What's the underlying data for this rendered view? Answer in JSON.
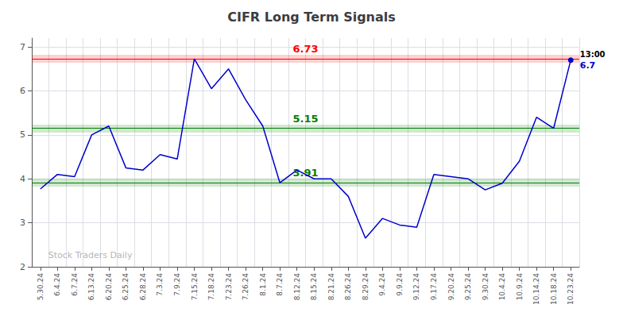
{
  "chart_data": {
    "type": "line",
    "title": "CIFR Long Term Signals",
    "categories": [
      "5.30.24",
      "6.4.24",
      "6.7.24",
      "6.13.24",
      "6.20.24",
      "6.25.24",
      "6.28.24",
      "7.3.24",
      "7.9.24",
      "7.15.24",
      "7.18.24",
      "7.23.24",
      "7.26.24",
      "8.1.24",
      "8.7.24",
      "8.12.24",
      "8.15.24",
      "8.21.24",
      "8.26.24",
      "8.29.24",
      "9.4.24",
      "9.9.24",
      "9.12.24",
      "9.17.24",
      "9.20.24",
      "9.25.24",
      "9.30.24",
      "10.4.24",
      "10.9.24",
      "10.14.24",
      "10.18.24",
      "10.23.24"
    ],
    "values": [
      3.77,
      4.1,
      4.05,
      5.0,
      5.2,
      4.25,
      4.2,
      4.55,
      4.45,
      6.73,
      6.05,
      6.5,
      5.8,
      5.2,
      3.91,
      4.2,
      4.0,
      4.0,
      3.6,
      2.65,
      3.1,
      2.95,
      2.9,
      4.1,
      4.05,
      4.0,
      3.75,
      3.9,
      4.4,
      5.4,
      5.15,
      6.7
    ],
    "value_labels": [
      null,
      null,
      null,
      null,
      null,
      null,
      null,
      null,
      null,
      null,
      null,
      null,
      null,
      null,
      null,
      null,
      null,
      null,
      null,
      null,
      null,
      null,
      null,
      null,
      null,
      null,
      null,
      null,
      null,
      null,
      null,
      "6.7"
    ],
    "color": "#0000cc",
    "hlines": [
      {
        "value": 6.73,
        "label": "6.73",
        "color": "red"
      },
      {
        "value": 5.15,
        "label": "5.15",
        "color": "green"
      },
      {
        "value": 3.91,
        "label": "3.91",
        "color": "green"
      }
    ],
    "point_annotation": "13:00",
    "watermark": "Stock Traders Daily",
    "ylim": [
      2.0,
      7.2
    ],
    "yticks": [
      2,
      3,
      4,
      5,
      6,
      7
    ],
    "grid": true
  }
}
